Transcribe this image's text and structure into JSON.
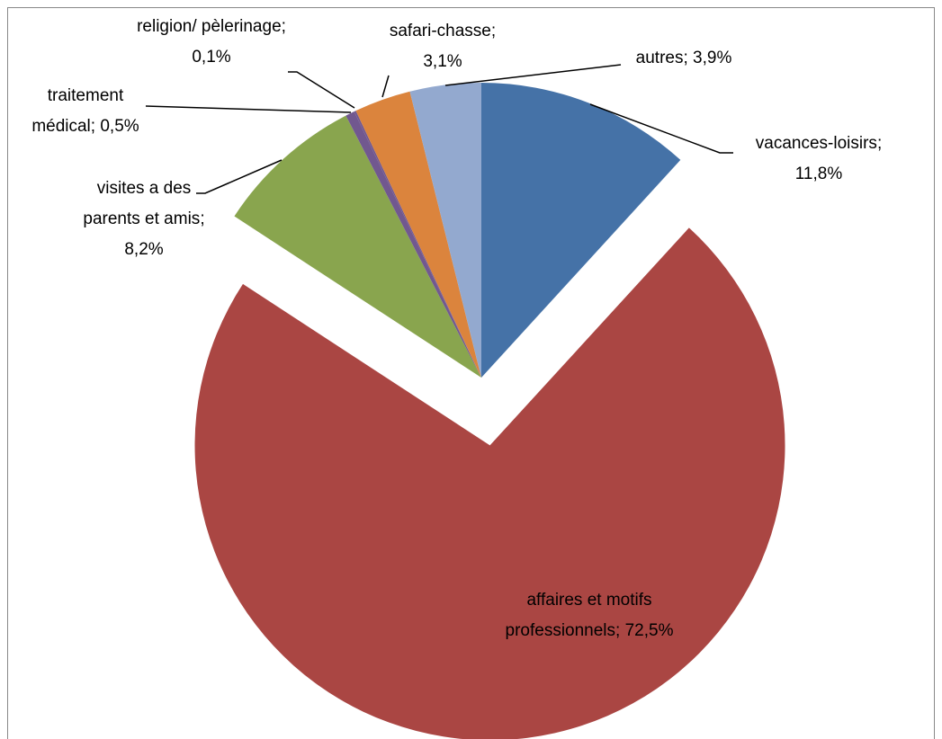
{
  "chart_data": {
    "type": "pie",
    "categories": [
      "vacances-loisirs",
      "affaires et motifs professionnels",
      "visites a des parents et amis",
      "traitement médical",
      "religion/ pèlerinage",
      "safari-chasse",
      "autres"
    ],
    "values": [
      11.8,
      72.5,
      8.2,
      0.5,
      0.1,
      3.1,
      3.9
    ],
    "value_labels": [
      "11,8%",
      "72,5%",
      "8,2%",
      "0,5%",
      "0,1%",
      "3,1%",
      "3,9%"
    ],
    "label_separator": "; ",
    "colors": [
      "#4572a7",
      "#aa4643",
      "#89a54e",
      "#71588f",
      "#71588f",
      "#db843d",
      "#93a9cf"
    ],
    "exploded": [
      1
    ]
  }
}
